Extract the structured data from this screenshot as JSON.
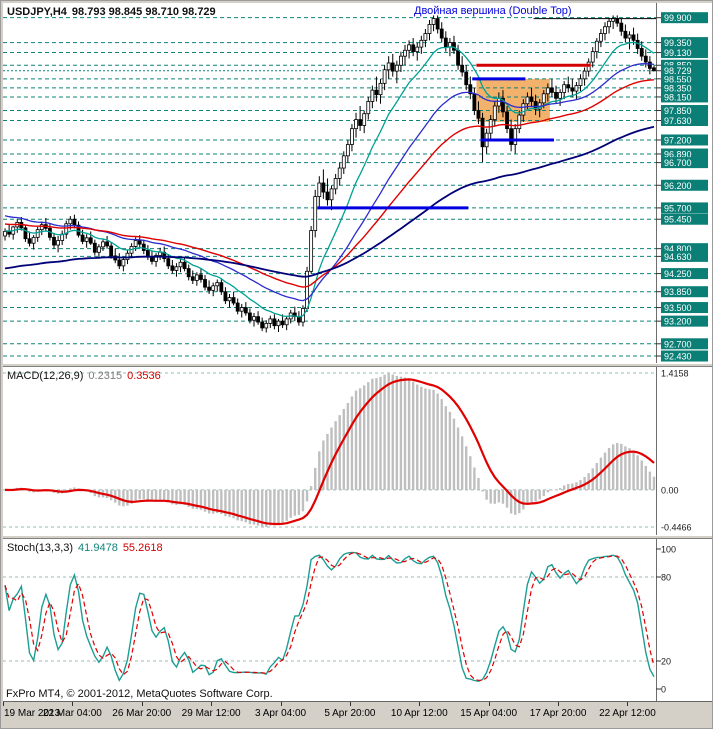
{
  "window": {
    "symbol_title": "USDJPY,H4",
    "ohlc_text": "98.793 98.845 98.710 98.729"
  },
  "footer": {
    "copyright": "FxPro MT4, © 2001-2012, MetaQuotes Software Corp."
  },
  "colors": {
    "grid_level": "#0E837A",
    "axis_tag_bg": "#0B7F76",
    "candle_up": "#FFFFFF",
    "candle_down": "#000000",
    "macd_hist": "#BFBFBF",
    "macd_signal": "#E00000",
    "stoch_k": "#1C9E94",
    "stoch_d": "#E00000",
    "annotation_blue": "#0000E0",
    "rectangle_fill": "#F3B26B"
  },
  "chart_data": [
    {
      "type": "candlestick",
      "title": "USDJPY,H4",
      "symbol_title": "USDJPY,H4",
      "ohlc_text": "98.793 98.845 98.710 98.729",
      "annotation": {
        "text": "Двойная вершина (Double Top)",
        "color": "#0000E0"
      },
      "ylim": [
        92.32,
        100.18
      ],
      "x_labels": [
        "19 Mar 2013",
        "22 Mar 04:00",
        "26 Mar 20:00",
        "29 Mar 12:00",
        "3 Apr 04:00",
        "5 Apr 20:00",
        "10 Apr 12:00",
        "15 Apr 04:00",
        "17 Apr 20:00",
        "22 Apr 12:00"
      ],
      "x_label_bars": [
        0,
        17,
        34,
        51,
        68,
        85,
        102,
        119,
        136,
        153
      ],
      "price_levels": [
        "99.900",
        "99.350",
        "99.130",
        "98.850",
        "98.550",
        "98.350",
        "98.150",
        "97.850",
        "97.630",
        "97.200",
        "96.890",
        "96.700",
        "96.200",
        "95.700",
        "95.450",
        "94.800",
        "94.630",
        "94.250",
        "93.850",
        "93.500",
        "93.200",
        "92.700",
        "92.430"
      ],
      "current_price": {
        "value": 98.729,
        "label": "98.729"
      },
      "overlays": {
        "emas": [
          {
            "name": "ma-fast-teal",
            "period": 13,
            "seed": 95.2,
            "color": "#00A295",
            "width": 1.3
          },
          {
            "name": "ma-mid-blue",
            "period": 34,
            "seed": 95.55,
            "color": "#2B2BCF",
            "width": 1.3
          },
          {
            "name": "ma-slow-red",
            "period": 55,
            "seed": 95.35,
            "color": "#E00000",
            "width": 1.4
          },
          {
            "name": "ma-long-navy",
            "period": 120,
            "seed": 94.35,
            "color": "#000078",
            "width": 1.8
          }
        ],
        "segments": [
          {
            "name": "support-95700",
            "price": 95.7,
            "bar_start": 77,
            "bar_end": 114,
            "color": "#0000E0",
            "width": 3
          },
          {
            "name": "support-97200",
            "price": 97.2,
            "bar_start": 117,
            "bar_end": 135,
            "color": "#0000E0",
            "width": 3
          },
          {
            "name": "support-98550",
            "price": 98.55,
            "bar_start": 115,
            "bar_end": 128,
            "color": "#0000E0",
            "width": 3
          },
          {
            "name": "neckline-98850",
            "price": 98.85,
            "bar_start": 116,
            "bar_end": 144,
            "color": "#D00000",
            "width": 3
          },
          {
            "name": "tops-resistance",
            "price": 99.88,
            "bar_start": 130,
            "bar_end": 160,
            "color": "#000000",
            "width": 1
          }
        ],
        "rectangle": {
          "bar_start": 116,
          "bar_end": 134,
          "price_top": 98.55,
          "price_bottom": 97.6,
          "fill": "#F3B26B"
        }
      },
      "candles_ohlc": [
        [
          95.08,
          95.25,
          94.98,
          95.18
        ],
        [
          95.18,
          95.35,
          95.05,
          95.12
        ],
        [
          95.12,
          95.3,
          95.0,
          95.28
        ],
        [
          95.28,
          95.45,
          95.15,
          95.38
        ],
        [
          95.38,
          95.5,
          95.2,
          95.26
        ],
        [
          95.26,
          95.33,
          94.95,
          95.02
        ],
        [
          95.02,
          95.18,
          94.85,
          94.92
        ],
        [
          94.92,
          95.1,
          94.78,
          95.05
        ],
        [
          95.05,
          95.28,
          94.95,
          95.22
        ],
        [
          95.22,
          95.4,
          95.1,
          95.33
        ],
        [
          95.33,
          95.48,
          95.18,
          95.25
        ],
        [
          95.25,
          95.35,
          94.98,
          95.05
        ],
        [
          95.05,
          95.15,
          94.8,
          94.88
        ],
        [
          94.88,
          95.08,
          94.72,
          94.98
        ],
        [
          94.98,
          95.2,
          94.88,
          95.12
        ],
        [
          95.12,
          95.42,
          95.02,
          95.35
        ],
        [
          95.35,
          95.52,
          95.22,
          95.45
        ],
        [
          95.45,
          95.55,
          95.25,
          95.32
        ],
        [
          95.32,
          95.4,
          95.05,
          95.1
        ],
        [
          95.1,
          95.22,
          94.9,
          94.96
        ],
        [
          94.96,
          95.12,
          94.82,
          95.04
        ],
        [
          95.04,
          95.18,
          94.88,
          94.92
        ],
        [
          94.92,
          95.0,
          94.65,
          94.72
        ],
        [
          94.72,
          94.9,
          94.6,
          94.84
        ],
        [
          94.84,
          95.02,
          94.75,
          94.95
        ],
        [
          94.95,
          95.08,
          94.8,
          94.86
        ],
        [
          94.86,
          94.94,
          94.58,
          94.64
        ],
        [
          94.64,
          94.8,
          94.48,
          94.55
        ],
        [
          94.55,
          94.7,
          94.35,
          94.42
        ],
        [
          94.42,
          94.62,
          94.3,
          94.56
        ],
        [
          94.56,
          94.78,
          94.46,
          94.7
        ],
        [
          94.7,
          94.92,
          94.6,
          94.85
        ],
        [
          94.85,
          95.05,
          94.75,
          94.98
        ],
        [
          94.98,
          95.1,
          94.82,
          94.9
        ],
        [
          94.9,
          95.0,
          94.68,
          94.76
        ],
        [
          94.76,
          94.88,
          94.55,
          94.62
        ],
        [
          94.62,
          94.75,
          94.45,
          94.52
        ],
        [
          94.52,
          94.7,
          94.4,
          94.65
        ],
        [
          94.65,
          94.82,
          94.55,
          94.72
        ],
        [
          94.72,
          94.85,
          94.5,
          94.58
        ],
        [
          94.58,
          94.68,
          94.35,
          94.42
        ],
        [
          94.42,
          94.55,
          94.25,
          94.32
        ],
        [
          94.32,
          94.48,
          94.18,
          94.4
        ],
        [
          94.4,
          94.58,
          94.28,
          94.5
        ],
        [
          94.5,
          94.62,
          94.3,
          94.36
        ],
        [
          94.36,
          94.45,
          94.1,
          94.18
        ],
        [
          94.18,
          94.32,
          94.02,
          94.1
        ],
        [
          94.1,
          94.28,
          93.98,
          94.22
        ],
        [
          94.22,
          94.35,
          94.05,
          94.12
        ],
        [
          94.12,
          94.22,
          93.88,
          93.95
        ],
        [
          93.95,
          94.1,
          93.8,
          93.88
        ],
        [
          93.88,
          94.05,
          93.75,
          93.98
        ],
        [
          93.98,
          94.12,
          93.85,
          94.05
        ],
        [
          94.05,
          94.15,
          93.78,
          93.85
        ],
        [
          93.85,
          93.95,
          93.58,
          93.65
        ],
        [
          93.65,
          93.8,
          93.5,
          93.72
        ],
        [
          93.72,
          93.85,
          93.55,
          93.6
        ],
        [
          93.6,
          93.7,
          93.35,
          93.42
        ],
        [
          93.42,
          93.58,
          93.28,
          93.5
        ],
        [
          93.5,
          93.62,
          93.32,
          93.38
        ],
        [
          93.38,
          93.48,
          93.15,
          93.22
        ],
        [
          93.22,
          93.38,
          93.08,
          93.3
        ],
        [
          93.3,
          93.42,
          93.12,
          93.18
        ],
        [
          93.18,
          93.28,
          92.98,
          93.05
        ],
        [
          93.05,
          93.22,
          92.95,
          93.15
        ],
        [
          93.15,
          93.32,
          93.05,
          93.25
        ],
        [
          93.25,
          93.35,
          93.02,
          93.1
        ],
        [
          93.1,
          93.25,
          92.96,
          93.2
        ],
        [
          93.2,
          93.35,
          93.05,
          93.12
        ],
        [
          93.12,
          93.3,
          93.0,
          93.25
        ],
        [
          93.25,
          93.45,
          93.15,
          93.38
        ],
        [
          93.38,
          93.52,
          93.2,
          93.3
        ],
        [
          93.3,
          93.42,
          93.1,
          93.18
        ],
        [
          93.18,
          93.55,
          93.08,
          93.48
        ],
        [
          93.48,
          94.4,
          93.4,
          94.3
        ],
        [
          94.3,
          95.3,
          94.25,
          95.2
        ],
        [
          95.2,
          96.1,
          95.05,
          95.95
        ],
        [
          95.95,
          96.4,
          95.7,
          96.25
        ],
        [
          96.25,
          96.55,
          95.9,
          96.05
        ],
        [
          96.05,
          96.35,
          95.75,
          95.88
        ],
        [
          95.88,
          96.2,
          95.65,
          96.12
        ],
        [
          96.12,
          96.45,
          96.0,
          96.35
        ],
        [
          96.35,
          96.7,
          96.2,
          96.58
        ],
        [
          96.58,
          96.95,
          96.45,
          96.85
        ],
        [
          96.85,
          97.2,
          96.7,
          97.1
        ],
        [
          97.1,
          97.55,
          96.95,
          97.45
        ],
        [
          97.45,
          97.8,
          97.25,
          97.65
        ],
        [
          97.65,
          97.95,
          97.4,
          97.52
        ],
        [
          97.52,
          97.85,
          97.35,
          97.78
        ],
        [
          97.78,
          98.15,
          97.65,
          98.05
        ],
        [
          98.05,
          98.4,
          97.9,
          98.3
        ],
        [
          98.3,
          98.6,
          98.05,
          98.2
        ],
        [
          98.2,
          98.55,
          98.0,
          98.45
        ],
        [
          98.45,
          98.85,
          98.3,
          98.75
        ],
        [
          98.75,
          99.05,
          98.55,
          98.9
        ],
        [
          98.9,
          99.1,
          98.6,
          98.72
        ],
        [
          98.72,
          98.95,
          98.45,
          98.85
        ],
        [
          98.85,
          99.15,
          98.7,
          99.05
        ],
        [
          99.05,
          99.3,
          98.85,
          99.18
        ],
        [
          99.18,
          99.4,
          99.0,
          99.3
        ],
        [
          99.3,
          99.45,
          99.05,
          99.15
        ],
        [
          99.15,
          99.35,
          98.95,
          99.25
        ],
        [
          99.25,
          99.5,
          99.1,
          99.4
        ],
        [
          99.4,
          99.65,
          99.25,
          99.55
        ],
        [
          99.55,
          99.85,
          99.4,
          99.75
        ],
        [
          99.75,
          99.95,
          99.6,
          99.88
        ],
        [
          99.88,
          99.95,
          99.55,
          99.65
        ],
        [
          99.65,
          99.8,
          99.35,
          99.45
        ],
        [
          99.45,
          99.6,
          99.15,
          99.25
        ],
        [
          99.25,
          99.45,
          99.05,
          99.35
        ],
        [
          99.35,
          99.5,
          99.1,
          99.18
        ],
        [
          99.18,
          99.3,
          98.75,
          98.85
        ],
        [
          98.85,
          99.05,
          98.6,
          98.7
        ],
        [
          98.7,
          98.85,
          98.3,
          98.42
        ],
        [
          98.42,
          98.6,
          98.1,
          98.22
        ],
        [
          98.22,
          98.35,
          97.75,
          97.85
        ],
        [
          97.85,
          98.05,
          97.55,
          97.68
        ],
        [
          97.68,
          97.8,
          96.71,
          97.05
        ],
        [
          97.05,
          97.45,
          96.9,
          97.35
        ],
        [
          97.35,
          97.75,
          97.2,
          97.65
        ],
        [
          97.65,
          98.05,
          97.5,
          97.95
        ],
        [
          97.95,
          98.25,
          97.8,
          98.12
        ],
        [
          98.12,
          98.3,
          97.7,
          97.82
        ],
        [
          97.82,
          97.95,
          97.35,
          97.45
        ],
        [
          97.45,
          97.65,
          96.95,
          97.1
        ],
        [
          97.1,
          97.55,
          96.9,
          97.45
        ],
        [
          97.45,
          97.85,
          97.35,
          97.75
        ],
        [
          97.75,
          98.1,
          97.6,
          98.0
        ],
        [
          98.0,
          98.25,
          97.85,
          98.15
        ],
        [
          98.15,
          98.35,
          97.95,
          98.05
        ],
        [
          98.05,
          98.2,
          97.75,
          97.88
        ],
        [
          97.88,
          98.1,
          97.7,
          98.02
        ],
        [
          98.02,
          98.3,
          97.9,
          98.22
        ],
        [
          98.22,
          98.45,
          98.05,
          98.35
        ],
        [
          98.35,
          98.55,
          98.15,
          98.25
        ],
        [
          98.25,
          98.4,
          98.0,
          98.12
        ],
        [
          98.12,
          98.32,
          97.95,
          98.25
        ],
        [
          98.25,
          98.5,
          98.1,
          98.42
        ],
        [
          98.42,
          98.6,
          98.25,
          98.35
        ],
        [
          98.35,
          98.55,
          98.15,
          98.28
        ],
        [
          98.28,
          98.48,
          98.1,
          98.4
        ],
        [
          98.4,
          98.65,
          98.28,
          98.55
        ],
        [
          98.55,
          98.8,
          98.4,
          98.72
        ],
        [
          98.72,
          99.0,
          98.6,
          98.92
        ],
        [
          98.92,
          99.25,
          98.8,
          99.15
        ],
        [
          99.15,
          99.45,
          99.0,
          99.38
        ],
        [
          99.38,
          99.65,
          99.25,
          99.55
        ],
        [
          99.55,
          99.8,
          99.4,
          99.7
        ],
        [
          99.7,
          99.9,
          99.55,
          99.82
        ],
        [
          99.82,
          99.95,
          99.65,
          99.88
        ],
        [
          99.88,
          99.95,
          99.7,
          99.78
        ],
        [
          99.78,
          99.88,
          99.5,
          99.6
        ],
        [
          99.6,
          99.75,
          99.35,
          99.45
        ],
        [
          99.45,
          99.6,
          99.2,
          99.52
        ],
        [
          99.52,
          99.68,
          99.3,
          99.4
        ],
        [
          99.4,
          99.55,
          99.1,
          99.22
        ],
        [
          99.22,
          99.38,
          98.95,
          99.05
        ],
        [
          99.05,
          99.2,
          98.8,
          98.92
        ],
        [
          98.92,
          99.05,
          98.65,
          98.78
        ],
        [
          98.793,
          98.845,
          98.71,
          98.729
        ]
      ]
    },
    {
      "type": "bar",
      "name": "MACD",
      "label": "MACD(12,26,9)",
      "value_main": "0.2315",
      "value_signal": "0.3536",
      "params": [
        12,
        26,
        9
      ],
      "axis_labels": {
        "max": "1.4158",
        "zero": "0.00",
        "min": "-0.4466"
      },
      "derived_from": "candles_closes_ema12_minus_ema26_signal_ema9"
    },
    {
      "type": "line",
      "name": "Stochastic",
      "label": "Stoch(13,3,3)",
      "value_k": "41.9478",
      "value_d": "55.2618",
      "params": [
        13,
        3,
        3
      ],
      "axis_labels": [
        "100",
        "80",
        "20",
        "0"
      ],
      "levels": [
        80,
        20
      ],
      "range": [
        0,
        100
      ],
      "derived_from": "candles_stochastic_13_3_3"
    }
  ]
}
